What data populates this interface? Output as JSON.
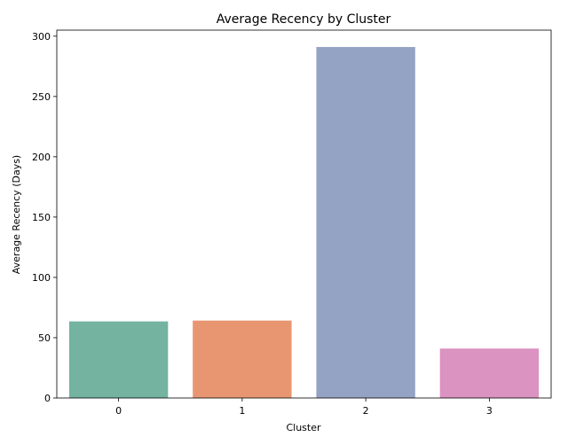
{
  "chart_data": {
    "type": "bar",
    "title": "Average Recency by Cluster",
    "xlabel": "Cluster",
    "ylabel": "Average Recency (Days)",
    "categories": [
      "0",
      "1",
      "2",
      "3"
    ],
    "values": [
      63.5,
      64.2,
      291.0,
      41.0
    ],
    "ylim": [
      0,
      305
    ],
    "yticks": [
      0,
      50,
      100,
      150,
      200,
      250,
      300
    ],
    "colors": [
      "#73b3a0",
      "#e89672",
      "#94a3c3",
      "#db93c1"
    ],
    "grid": false,
    "legend": "none"
  }
}
